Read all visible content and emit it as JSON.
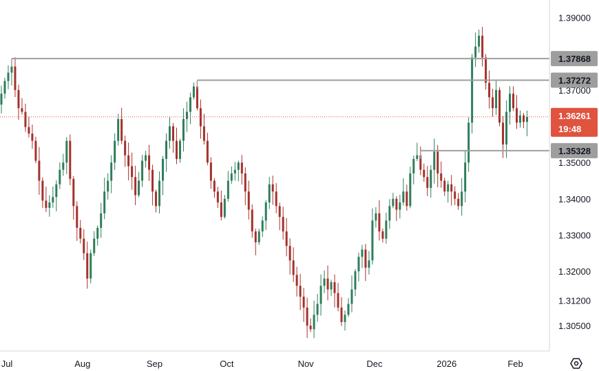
{
  "chart_data": {
    "type": "candlestick",
    "title": "",
    "xlabel": "",
    "ylabel": "",
    "ylim": [
      1.298,
      1.392
    ],
    "y_ticks": [
      "1.39000",
      "1.37000",
      "1.35000",
      "1.34000",
      "1.33000",
      "1.32000",
      "1.31200",
      "1.30500"
    ],
    "y_tick_values": [
      1.39,
      1.37,
      1.35,
      1.34,
      1.33,
      1.32,
      1.312,
      1.305
    ],
    "x_labels": [
      {
        "label": "Jul",
        "index": 0
      },
      {
        "label": "Aug",
        "index": 22
      },
      {
        "label": "Sep",
        "index": 43
      },
      {
        "label": "Oct",
        "index": 64
      },
      {
        "label": "Nov",
        "index": 87
      },
      {
        "label": "Dec",
        "index": 107
      },
      {
        "label": "2026",
        "index": 128
      },
      {
        "label": "Feb",
        "index": 148
      }
    ],
    "levels": [
      {
        "label": "1.37868",
        "value": 1.37868,
        "start_index": 3
      },
      {
        "label": "1.37272",
        "value": 1.37272,
        "start_index": 57
      },
      {
        "label": "1.35328",
        "value": 1.35328,
        "start_index": 122
      }
    ],
    "current_price": {
      "label": "1.36261",
      "value": 1.36261,
      "countdown": "19:48"
    },
    "colors": {
      "up": "#2e7d5b",
      "down": "#a5302a",
      "level": "#9e9e9e",
      "tag": "#9e9e9e",
      "current": "#e0533f",
      "grid": "#e0e3eb"
    },
    "grid": false,
    "close": [
      1.369,
      1.3725,
      1.3748,
      1.3765,
      1.37,
      1.365,
      1.364,
      1.3598,
      1.358,
      1.356,
      1.3505,
      1.345,
      1.3395,
      1.3375,
      1.339,
      1.3405,
      1.344,
      1.348,
      1.35,
      1.356,
      1.3455,
      1.338,
      1.332,
      1.329,
      1.325,
      1.318,
      1.325,
      1.329,
      1.332,
      1.336,
      1.342,
      1.345,
      1.35,
      1.356,
      1.362,
      1.356,
      1.352,
      1.349,
      1.346,
      1.341,
      1.345,
      1.3505,
      1.352,
      1.348,
      1.342,
      1.338,
      1.345,
      1.351,
      1.356,
      1.36,
      1.356,
      1.351,
      1.356,
      1.362,
      1.364,
      1.368,
      1.371,
      1.365,
      1.36,
      1.356,
      1.35,
      1.345,
      1.342,
      1.339,
      1.335,
      1.34,
      1.345,
      1.347,
      1.348,
      1.35,
      1.347,
      1.342,
      1.337,
      1.331,
      1.328,
      1.331,
      1.334,
      1.339,
      1.344,
      1.342,
      1.338,
      1.335,
      1.331,
      1.327,
      1.323,
      1.319,
      1.316,
      1.313,
      1.31,
      1.305,
      1.304,
      1.308,
      1.311,
      1.316,
      1.318,
      1.315,
      1.317,
      1.314,
      1.31,
      1.306,
      1.308,
      1.311,
      1.315,
      1.32,
      1.324,
      1.326,
      1.321,
      1.323,
      1.334,
      1.336,
      1.331,
      1.329,
      1.334,
      1.338,
      1.34,
      1.337,
      1.339,
      1.342,
      1.338,
      1.347,
      1.351,
      1.352,
      1.348,
      1.346,
      1.343,
      1.348,
      1.353,
      1.347,
      1.345,
      1.342,
      1.344,
      1.342,
      1.34,
      1.338,
      1.342,
      1.35,
      1.361,
      1.379,
      1.382,
      1.385,
      1.379,
      1.372,
      1.368,
      1.365,
      1.37,
      1.361,
      1.355,
      1.364,
      1.369,
      1.365,
      1.361,
      1.363,
      1.3612,
      1.3626
    ],
    "overlay_symbol": "settings-hexagon-icon"
  }
}
